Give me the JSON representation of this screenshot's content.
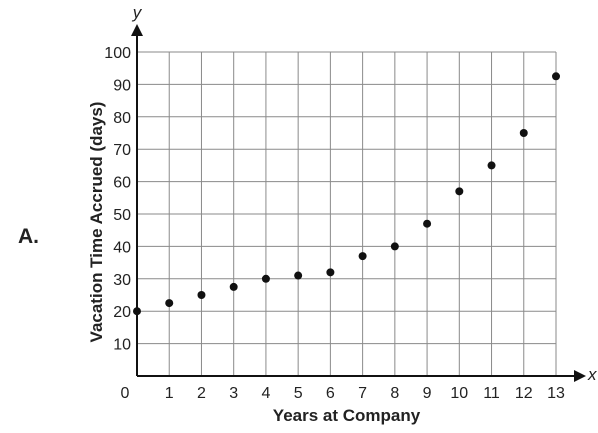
{
  "option_label": "A.",
  "chart_data": {
    "type": "scatter",
    "title": "",
    "xlabel": "Years at Company",
    "ylabel": "Vacation Time Accrued (days)",
    "x_axis_var": "x",
    "y_axis_var": "y",
    "xlim": [
      0,
      13
    ],
    "ylim": [
      0,
      100
    ],
    "x_ticks": [
      0,
      1,
      2,
      3,
      4,
      5,
      6,
      7,
      8,
      9,
      10,
      11,
      12,
      13
    ],
    "y_ticks": [
      10,
      20,
      30,
      40,
      50,
      60,
      70,
      80,
      90,
      100
    ],
    "grid": true,
    "legend": "none",
    "point_color": "#111111",
    "points": [
      {
        "x": 0,
        "y": 20
      },
      {
        "x": 1,
        "y": 22.5
      },
      {
        "x": 2,
        "y": 25
      },
      {
        "x": 3,
        "y": 27.5
      },
      {
        "x": 4,
        "y": 30
      },
      {
        "x": 5,
        "y": 31
      },
      {
        "x": 6,
        "y": 32
      },
      {
        "x": 7,
        "y": 37
      },
      {
        "x": 8,
        "y": 40
      },
      {
        "x": 9,
        "y": 47
      },
      {
        "x": 10,
        "y": 57
      },
      {
        "x": 11,
        "y": 65
      },
      {
        "x": 12,
        "y": 75
      },
      {
        "x": 13,
        "y": 92.5
      }
    ]
  }
}
